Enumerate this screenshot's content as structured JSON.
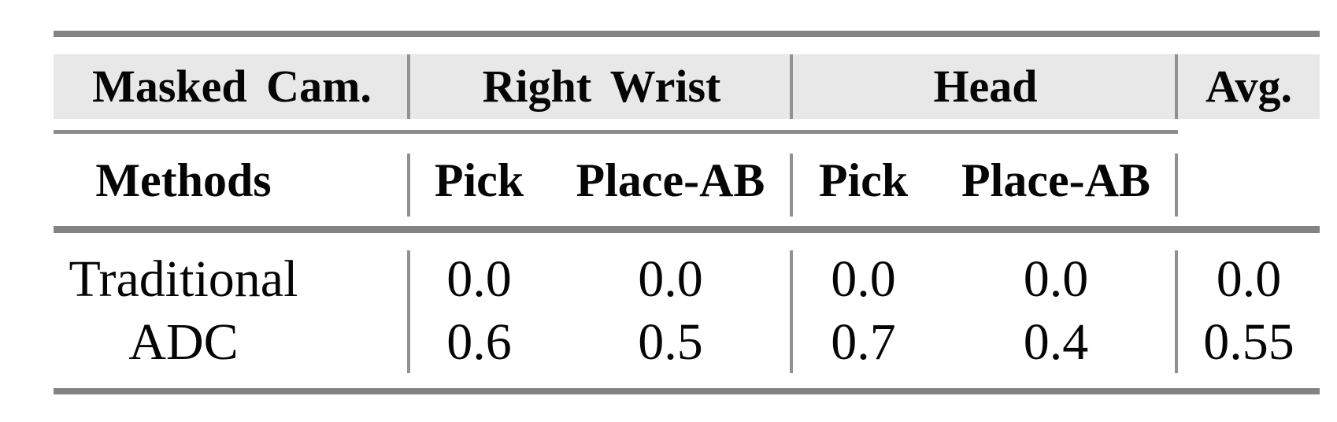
{
  "table": {
    "header_row1": {
      "masked_cam": "Masked Cam.",
      "right_wrist": "Right Wrist",
      "head": "Head",
      "avg": "Avg."
    },
    "header_row2": {
      "methods": "Methods",
      "rw_pick": "Pick",
      "rw_place_ab": "Place-AB",
      "head_pick": "Pick",
      "head_place_ab": "Place-AB"
    },
    "rows": [
      {
        "method": "Traditional",
        "values": [
          "0.0",
          "0.0",
          "0.0",
          "0.0",
          "0.0"
        ]
      },
      {
        "method": "ADC",
        "values": [
          "0.6",
          "0.5",
          "0.7",
          "0.4",
          "0.55"
        ]
      }
    ],
    "colors": {
      "header_bg": "#e8e8e8",
      "thick_rule": "#838383",
      "thin_rule": "#8c8c8c",
      "divider": "#919191",
      "text": "#050505"
    }
  },
  "chart_data": {
    "type": "table",
    "column_groups": [
      "Masked Cam.",
      "Right Wrist",
      "Head",
      "Avg."
    ],
    "columns": [
      "Methods",
      "Right Wrist Pick",
      "Right Wrist Place-AB",
      "Head Pick",
      "Head Place-AB",
      "Avg."
    ],
    "rows": [
      [
        "Traditional",
        0.0,
        0.0,
        0.0,
        0.0,
        0.0
      ],
      [
        "ADC",
        0.6,
        0.5,
        0.7,
        0.4,
        0.55
      ]
    ]
  }
}
